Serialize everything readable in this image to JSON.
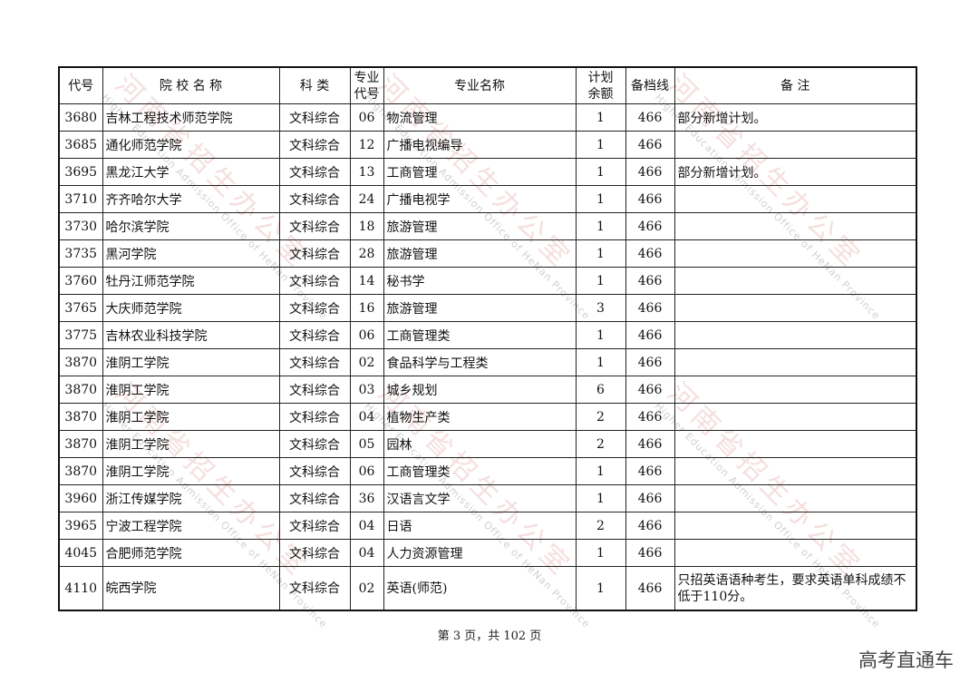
{
  "table": {
    "headers": [
      "代号",
      "院 校 名 称",
      "科 类",
      "专业\n代号",
      "专业名称",
      "计划\n余额",
      "备档线",
      "备 注"
    ],
    "rows": [
      [
        "3680",
        "吉林工程技术师范学院",
        "文科综合",
        "06",
        "物流管理",
        "1",
        "466",
        "部分新增计划。"
      ],
      [
        "3685",
        "通化师范学院",
        "文科综合",
        "12",
        "广播电视编导",
        "1",
        "466",
        ""
      ],
      [
        "3695",
        "黑龙江大学",
        "文科综合",
        "13",
        "工商管理",
        "1",
        "466",
        "部分新增计划。"
      ],
      [
        "3710",
        "齐齐哈尔大学",
        "文科综合",
        "24",
        "广播电视学",
        "1",
        "466",
        ""
      ],
      [
        "3730",
        "哈尔滨学院",
        "文科综合",
        "18",
        "旅游管理",
        "1",
        "466",
        ""
      ],
      [
        "3735",
        "黑河学院",
        "文科综合",
        "28",
        "旅游管理",
        "1",
        "466",
        ""
      ],
      [
        "3760",
        "牡丹江师范学院",
        "文科综合",
        "14",
        "秘书学",
        "1",
        "466",
        ""
      ],
      [
        "3765",
        "大庆师范学院",
        "文科综合",
        "16",
        "旅游管理",
        "3",
        "466",
        ""
      ],
      [
        "3775",
        "吉林农业科技学院",
        "文科综合",
        "06",
        "工商管理类",
        "1",
        "466",
        ""
      ],
      [
        "3870",
        "淮阴工学院",
        "文科综合",
        "02",
        "食品科学与工程类",
        "1",
        "466",
        ""
      ],
      [
        "3870",
        "淮阴工学院",
        "文科综合",
        "03",
        "城乡规划",
        "6",
        "466",
        ""
      ],
      [
        "3870",
        "淮阴工学院",
        "文科综合",
        "04",
        "植物生产类",
        "2",
        "466",
        ""
      ],
      [
        "3870",
        "淮阴工学院",
        "文科综合",
        "05",
        "园林",
        "2",
        "466",
        ""
      ],
      [
        "3870",
        "淮阴工学院",
        "文科综合",
        "06",
        "工商管理类",
        "1",
        "466",
        ""
      ],
      [
        "3960",
        "浙江传媒学院",
        "文科综合",
        "36",
        "汉语言文学",
        "1",
        "466",
        ""
      ],
      [
        "3965",
        "宁波工程学院",
        "文科综合",
        "04",
        "日语",
        "2",
        "466",
        ""
      ],
      [
        "4045",
        "合肥师范学院",
        "文科综合",
        "04",
        "人力资源管理",
        "1",
        "466",
        ""
      ],
      [
        "4110",
        "皖西学院",
        "文科综合",
        "02",
        "英语(师范)",
        "1",
        "466",
        "只招英语语种考生，要求英语单科成绩不低于110分。"
      ]
    ]
  },
  "footer": "第 3 页，共 102 页",
  "brand": "高考直通车",
  "watermark": {
    "cn": "河南省招生办公室",
    "en": "Higher Education Admission Office of HeNan Province"
  }
}
